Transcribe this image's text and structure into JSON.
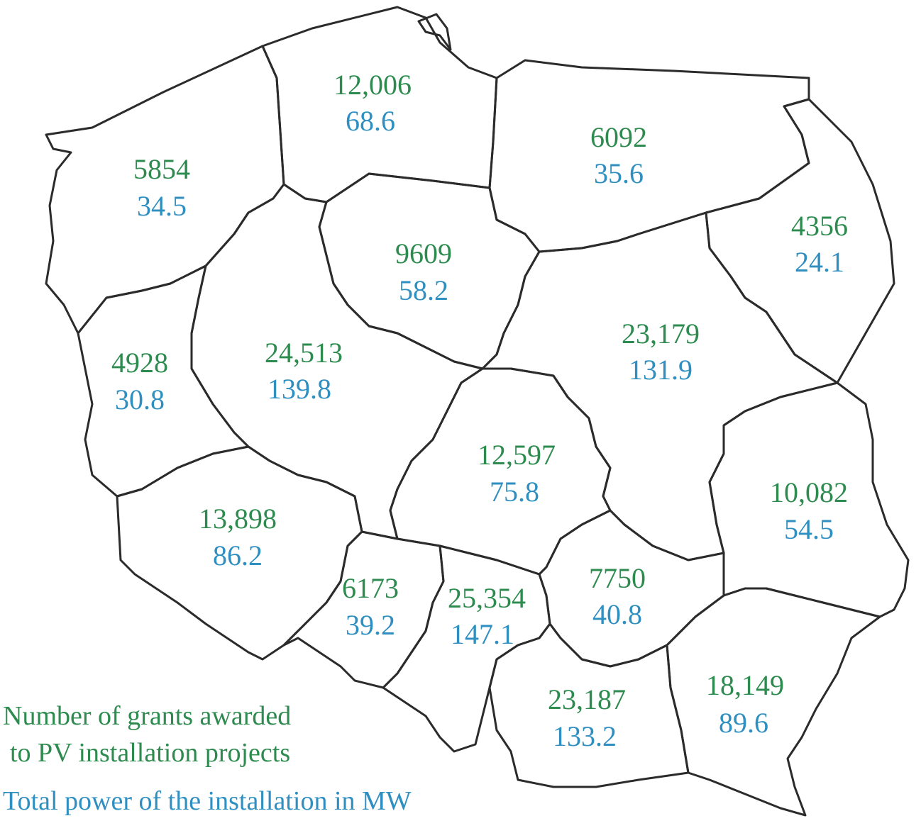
{
  "colors": {
    "grants": "#2e8b4f",
    "power": "#2f8fc0",
    "border": "#2b2b2b"
  },
  "regions": [
    {
      "id": "zachodniopomorskie",
      "grants": "5854",
      "power": "34.5"
    },
    {
      "id": "pomorskie",
      "grants": "12,006",
      "power": "68.6"
    },
    {
      "id": "warminsko-mazurskie",
      "grants": "6092",
      "power": "35.6"
    },
    {
      "id": "podlaskie",
      "grants": "4356",
      "power": "24.1"
    },
    {
      "id": "kujawsko-pomorskie",
      "grants": "9609",
      "power": "58.2"
    },
    {
      "id": "mazowieckie",
      "grants": "23,179",
      "power": "131.9"
    },
    {
      "id": "lubuskie",
      "grants": "4928",
      "power": "30.8"
    },
    {
      "id": "wielkopolskie",
      "grants": "24,513",
      "power": "139.8"
    },
    {
      "id": "lodzkie",
      "grants": "12,597",
      "power": "75.8"
    },
    {
      "id": "lubelskie",
      "grants": "10,082",
      "power": "54.5"
    },
    {
      "id": "dolnoslaskie",
      "grants": "13,898",
      "power": "86.2"
    },
    {
      "id": "opolskie",
      "grants": "6173",
      "power": "39.2"
    },
    {
      "id": "slaskie",
      "grants": "25,354",
      "power": "147.1"
    },
    {
      "id": "swietokrzyskie",
      "grants": "7750",
      "power": "40.8"
    },
    {
      "id": "malopolskie",
      "grants": "23,187",
      "power": "133.2"
    },
    {
      "id": "podkarpackie",
      "grants": "18,149",
      "power": "89.6"
    }
  ],
  "legend": {
    "grants_line1": "Number of grants awarded",
    "grants_line2": "to PV installation projects",
    "power_line": "Total power of the installation in MW"
  }
}
